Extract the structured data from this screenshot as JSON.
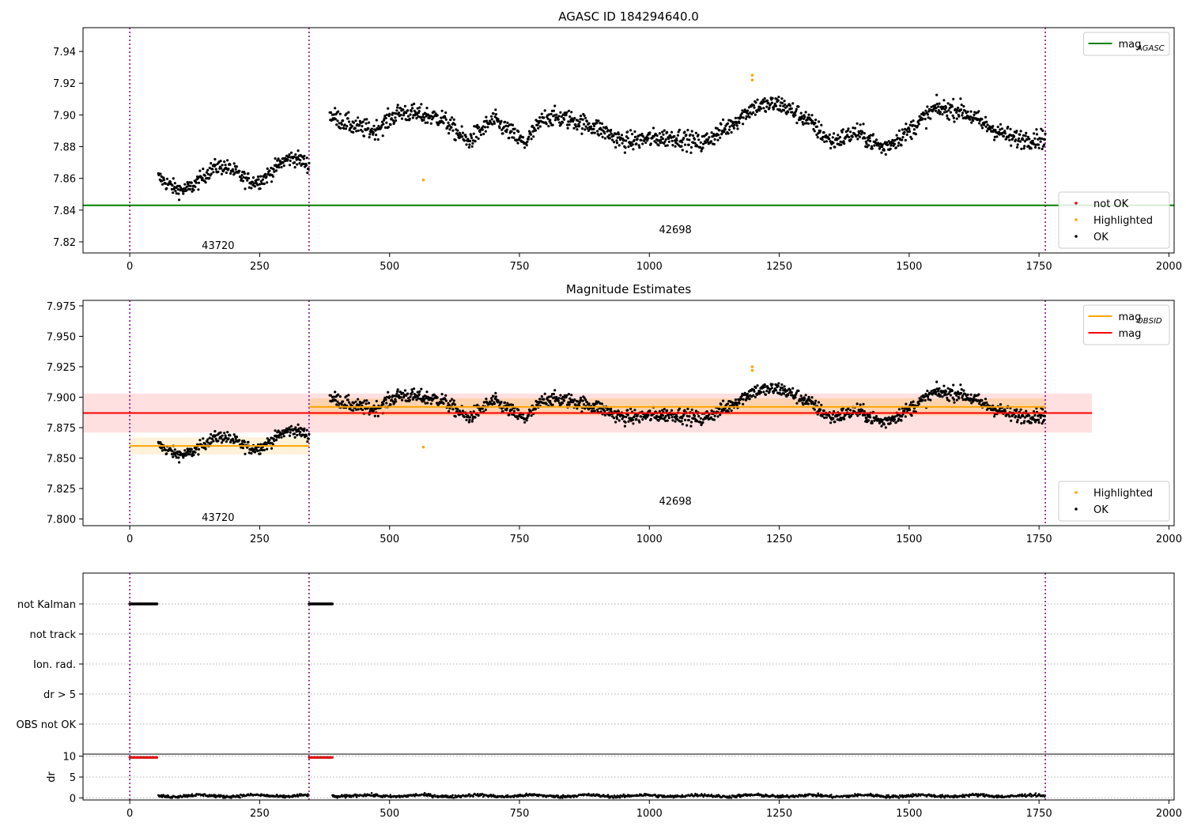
{
  "chart_data": [
    {
      "type": "scatter",
      "title": "AGASC ID 184294640.0",
      "xlim": [
        -90,
        2010
      ],
      "ylim": [
        7.813,
        7.955
      ],
      "xticks": [
        0,
        250,
        500,
        750,
        1000,
        1250,
        1500,
        1750,
        2000
      ],
      "yticks": [
        7.82,
        7.84,
        7.86,
        7.88,
        7.9,
        7.92,
        7.94
      ],
      "obs_boundaries": [
        0,
        345,
        1762
      ],
      "obsids": [
        {
          "label": "43720",
          "x": 170,
          "y": 7.818
        },
        {
          "label": "42698",
          "x": 1050,
          "y": 7.828
        }
      ],
      "hlines": [
        {
          "name": "mag",
          "subscript": "AGASC",
          "y": 7.843,
          "color": "#008000"
        }
      ],
      "series": [
        {
          "name": "OK",
          "color": "#000000",
          "segments": [
            {
              "x0": 55,
              "x1": 345,
              "y0": 7.857,
              "y1": 7.868,
              "wiggle": 0.006,
              "noise": 0.005
            },
            {
              "x0": 385,
              "x1": 1762,
              "waypoints": [
                [
                  385,
                  7.9
                ],
                [
                  430,
                  7.893
                ],
                [
                  470,
                  7.89
                ],
                [
                  520,
                  7.902
                ],
                [
                  600,
                  7.898
                ],
                [
                  650,
                  7.883
                ],
                [
                  700,
                  7.897
                ],
                [
                  760,
                  7.882
                ],
                [
                  800,
                  7.899
                ],
                [
                  850,
                  7.897
                ],
                [
                  900,
                  7.892
                ],
                [
                  950,
                  7.883
                ],
                [
                  1000,
                  7.885
                ],
                [
                  1050,
                  7.886
                ],
                [
                  1100,
                  7.882
                ],
                [
                  1150,
                  7.892
                ],
                [
                  1200,
                  7.905
                ],
                [
                  1250,
                  7.907
                ],
                [
                  1300,
                  7.898
                ],
                [
                  1350,
                  7.883
                ],
                [
                  1400,
                  7.889
                ],
                [
                  1450,
                  7.879
                ],
                [
                  1500,
                  7.89
                ],
                [
                  1550,
                  7.904
                ],
                [
                  1600,
                  7.903
                ],
                [
                  1650,
                  7.893
                ],
                [
                  1700,
                  7.885
                ],
                [
                  1762,
                  7.885
                ]
              ],
              "noise": 0.006
            }
          ]
        },
        {
          "name": "Highlighted",
          "color": "#ffa500",
          "points": [
            [
              565,
              7.859
            ],
            [
              1198,
              7.925
            ],
            [
              1198,
              7.922
            ]
          ]
        },
        {
          "name": "not OK",
          "color": "#ff0000",
          "points": []
        }
      ],
      "legends": [
        {
          "location": "upper-right",
          "entries": [
            {
              "label": "mag",
              "subscript": "AGASC",
              "kind": "line",
              "color": "#008000"
            }
          ]
        },
        {
          "location": "lower-right",
          "entries": [
            {
              "label": "not OK",
              "kind": "dot",
              "color": "#ff0000"
            },
            {
              "label": "Highlighted",
              "kind": "dot",
              "color": "#ffa500"
            },
            {
              "label": "OK",
              "kind": "dot",
              "color": "#000000"
            }
          ]
        }
      ]
    },
    {
      "type": "scatter",
      "title": "Magnitude Estimates",
      "xlim": [
        -90,
        2010
      ],
      "ylim": [
        7.7945,
        7.9795
      ],
      "xticks": [
        0,
        250,
        500,
        750,
        1000,
        1250,
        1500,
        1750,
        2000
      ],
      "yticks": [
        7.8,
        7.825,
        7.85,
        7.875,
        7.9,
        7.925,
        7.95,
        7.975
      ],
      "obs_boundaries": [
        0,
        345,
        1762
      ],
      "obsids": [
        {
          "label": "43720",
          "x": 170,
          "y": 7.8015
        },
        {
          "label": "42698",
          "x": 1050,
          "y": 7.815
        }
      ],
      "bands": [
        {
          "x0": -90,
          "x1": 1852,
          "y0": 7.871,
          "y1": 7.903,
          "color": "#ff0000",
          "opacity": 0.12
        },
        {
          "x0": 0,
          "x1": 345,
          "y0": 7.853,
          "y1": 7.867,
          "color": "#ffa500",
          "opacity": 0.15
        },
        {
          "x0": 345,
          "x1": 1762,
          "y0": 7.885,
          "y1": 7.899,
          "color": "#ffa500",
          "opacity": 0.22
        }
      ],
      "hlines": [
        {
          "name": "mag",
          "y": 7.887,
          "x0": -90,
          "x1": 1852,
          "color": "#ff0000"
        },
        {
          "name": "mag",
          "subscript": "OBSID",
          "y": 7.86,
          "x0": 0,
          "x1": 345,
          "color": "#ffa500"
        },
        {
          "name": "mag",
          "subscript": "OBSID",
          "y": 7.892,
          "x0": 345,
          "x1": 1762,
          "color": "#ffa500"
        }
      ],
      "legends": [
        {
          "location": "upper-right",
          "entries": [
            {
              "label": "mag",
              "subscript": "OBSID",
              "kind": "line",
              "color": "#ffa500"
            },
            {
              "label": "mag",
              "kind": "line",
              "color": "#ff0000"
            }
          ]
        },
        {
          "location": "lower-right",
          "entries": [
            {
              "label": "Highlighted",
              "kind": "dot",
              "color": "#ffa500"
            },
            {
              "label": "OK",
              "kind": "dot",
              "color": "#000000"
            }
          ]
        }
      ]
    },
    {
      "type": "scatter",
      "title": "",
      "xlim": [
        -90,
        2010
      ],
      "xticks": [
        0,
        250,
        500,
        750,
        1000,
        1250,
        1500,
        1750,
        2000
      ],
      "obs_boundaries": [
        0,
        345,
        1762
      ],
      "flag_rows": [
        "not Kalman",
        "not track",
        "Ion. rad.",
        "dr > 5",
        "OBS not OK"
      ],
      "flag_segments": [
        {
          "row": "not Kalman",
          "x0": 0,
          "x1": 53
        },
        {
          "row": "not Kalman",
          "x0": 345,
          "x1": 390
        }
      ],
      "dr": {
        "ylabel": "dr",
        "ylim": [
          -0.5,
          10.5
        ],
        "yticks": [
          0,
          5,
          10
        ],
        "clipped": [
          {
            "x0": 0,
            "x1": 53,
            "y": 9.7
          },
          {
            "x0": 345,
            "x1": 390,
            "y": 9.7
          }
        ],
        "segments": [
          {
            "x0": 55,
            "x1": 345,
            "y": 0.5
          },
          {
            "x0": 390,
            "x1": 1762,
            "y": 0.5
          }
        ]
      }
    }
  ]
}
